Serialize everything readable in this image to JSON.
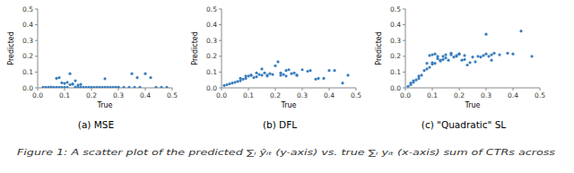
{
  "chart_data": [
    {
      "type": "scatter",
      "title": "(a) MSE",
      "xlabel": "True",
      "ylabel": "Predicted",
      "color": "#3a7ebe",
      "grid": false,
      "xlim": [
        0.0,
        0.5
      ],
      "ylim": [
        0.0,
        0.5
      ],
      "xticks": [
        {
          "value": 0.0,
          "label": "0.0"
        },
        0.1,
        0.2,
        0.3,
        0.4,
        0.5
      ],
      "yticks": [
        {
          "value": 0.0,
          "label": "0.0"
        },
        0.1,
        0.2,
        0.3,
        0.4,
        0.5
      ],
      "x": [
        0.05,
        0.07,
        0.08,
        0.09,
        0.1,
        0.11,
        0.12,
        0.13,
        0.14,
        0.15,
        0.16,
        0.25,
        0.3,
        0.35,
        0.37,
        0.02,
        0.03,
        0.04,
        0.06,
        0.07,
        0.08,
        0.09,
        0.1,
        0.11,
        0.12,
        0.13,
        0.14,
        0.15,
        0.16,
        0.17,
        0.18,
        0.19,
        0.2,
        0.21,
        0.22,
        0.23,
        0.24,
        0.25,
        0.26,
        0.27,
        0.28,
        0.29,
        0.3,
        0.32,
        0.34,
        0.36,
        0.38,
        0.4,
        0.42,
        0.44,
        0.46,
        0.48
      ],
      "values": [
        0.005,
        0.06,
        0.065,
        0.032,
        0.028,
        0.035,
        0.09,
        0.025,
        0.045,
        0.018,
        0.022,
        0.058,
        0.003,
        0.09,
        0.065,
        0.003,
        0.003,
        0.003,
        0.003,
        0.003,
        0.003,
        0.003,
        0.003,
        0.003,
        0.02,
        0.023,
        0.005,
        0.003,
        0.003,
        0.003,
        0.003,
        0.003,
        0.003,
        0.003,
        0.003,
        0.003,
        0.003,
        0.003,
        0.003,
        0.003,
        0.003,
        0.003,
        0.003,
        0.003,
        0.003,
        0.003,
        0.003,
        0.09,
        0.065,
        0.003,
        0.003,
        0.003
      ],
      "annotations": [
        {
          "text": "Figure 1: A scatter plot of the predicted ∑ᵢ ŷᵢₜ (y-axis) vs. true ∑ᵢ yᵢₜ (x-axis) sum of CTRs across"
        }
      ]
    },
    {
      "type": "scatter",
      "title": "(b) DFL",
      "xlabel": "True",
      "ylabel": "Predicted",
      "color": "#3a7ebe",
      "grid": false,
      "xlim": [
        0.0,
        0.5
      ],
      "ylim": [
        0.0,
        0.5
      ],
      "xticks": [
        {
          "value": 0.0,
          "label": "0.0"
        },
        0.1,
        0.2,
        0.3,
        0.4,
        0.5
      ],
      "yticks": [
        {
          "value": 0.0,
          "label": "0.0"
        },
        0.1,
        0.2,
        0.3,
        0.4,
        0.5
      ],
      "x": [
        0.01,
        0.02,
        0.03,
        0.04,
        0.05,
        0.06,
        0.07,
        0.08,
        0.09,
        0.1,
        0.11,
        0.12,
        0.13,
        0.14,
        0.15,
        0.16,
        0.17,
        0.18,
        0.19,
        0.2,
        0.21,
        0.22,
        0.23,
        0.24,
        0.25,
        0.26,
        0.27,
        0.28,
        0.3,
        0.32,
        0.33,
        0.35,
        0.36,
        0.38,
        0.4,
        0.42,
        0.45,
        0.47,
        0.07,
        0.09,
        0.11,
        0.13,
        0.15,
        0.17,
        0.22,
        0.24,
        0.28
      ],
      "values": [
        0.015,
        0.02,
        0.025,
        0.03,
        0.035,
        0.04,
        0.045,
        0.055,
        0.06,
        0.075,
        0.08,
        0.065,
        0.095,
        0.085,
        0.12,
        0.095,
        0.08,
        0.09,
        0.085,
        0.14,
        0.165,
        0.095,
        0.085,
        0.11,
        0.115,
        0.09,
        0.095,
        0.08,
        0.115,
        0.105,
        0.11,
        0.055,
        0.06,
        0.06,
        0.11,
        0.11,
        0.03,
        0.08,
        0.06,
        0.075,
        0.08,
        0.07,
        0.08,
        0.075,
        0.08,
        0.075,
        0.08
      ]
    },
    {
      "type": "scatter",
      "title": "(c) \"Quadratic\" SL",
      "xlabel": "True",
      "ylabel": "Predicted",
      "color": "#3a7ebe",
      "grid": false,
      "xlim": [
        0.0,
        0.5
      ],
      "ylim": [
        0.0,
        0.5
      ],
      "xticks": [
        {
          "value": 0.0,
          "label": "0.0"
        },
        0.1,
        0.2,
        0.3,
        0.4,
        0.5
      ],
      "yticks": [
        {
          "value": 0.0,
          "label": "0.0"
        },
        0.1,
        0.2,
        0.3,
        0.4,
        0.5
      ],
      "x": [
        0.01,
        0.02,
        0.02,
        0.03,
        0.03,
        0.04,
        0.05,
        0.05,
        0.06,
        0.07,
        0.08,
        0.09,
        0.1,
        0.1,
        0.11,
        0.12,
        0.13,
        0.14,
        0.15,
        0.16,
        0.17,
        0.18,
        0.19,
        0.2,
        0.21,
        0.22,
        0.23,
        0.24,
        0.25,
        0.26,
        0.27,
        0.28,
        0.29,
        0.3,
        0.31,
        0.32,
        0.33,
        0.35,
        0.38,
        0.4,
        0.43,
        0.47,
        0.08,
        0.09,
        0.1,
        0.11,
        0.12,
        0.13,
        0.14,
        0.15,
        0.17,
        0.19,
        0.2,
        0.22,
        0.3,
        0.32
      ],
      "values": [
        0.01,
        0.02,
        0.03,
        0.035,
        0.045,
        0.05,
        0.06,
        0.075,
        0.08,
        0.11,
        0.12,
        0.13,
        0.15,
        0.16,
        0.155,
        0.185,
        0.17,
        0.18,
        0.19,
        0.175,
        0.21,
        0.195,
        0.2,
        0.215,
        0.175,
        0.18,
        0.145,
        0.16,
        0.195,
        0.165,
        0.2,
        0.195,
        0.205,
        0.215,
        0.2,
        0.175,
        0.22,
        0.21,
        0.22,
        0.215,
        0.36,
        0.2,
        0.155,
        0.205,
        0.21,
        0.215,
        0.2,
        0.175,
        0.2,
        0.21,
        0.22,
        0.205,
        0.215,
        0.205,
        0.34,
        0.21
      ]
    }
  ]
}
